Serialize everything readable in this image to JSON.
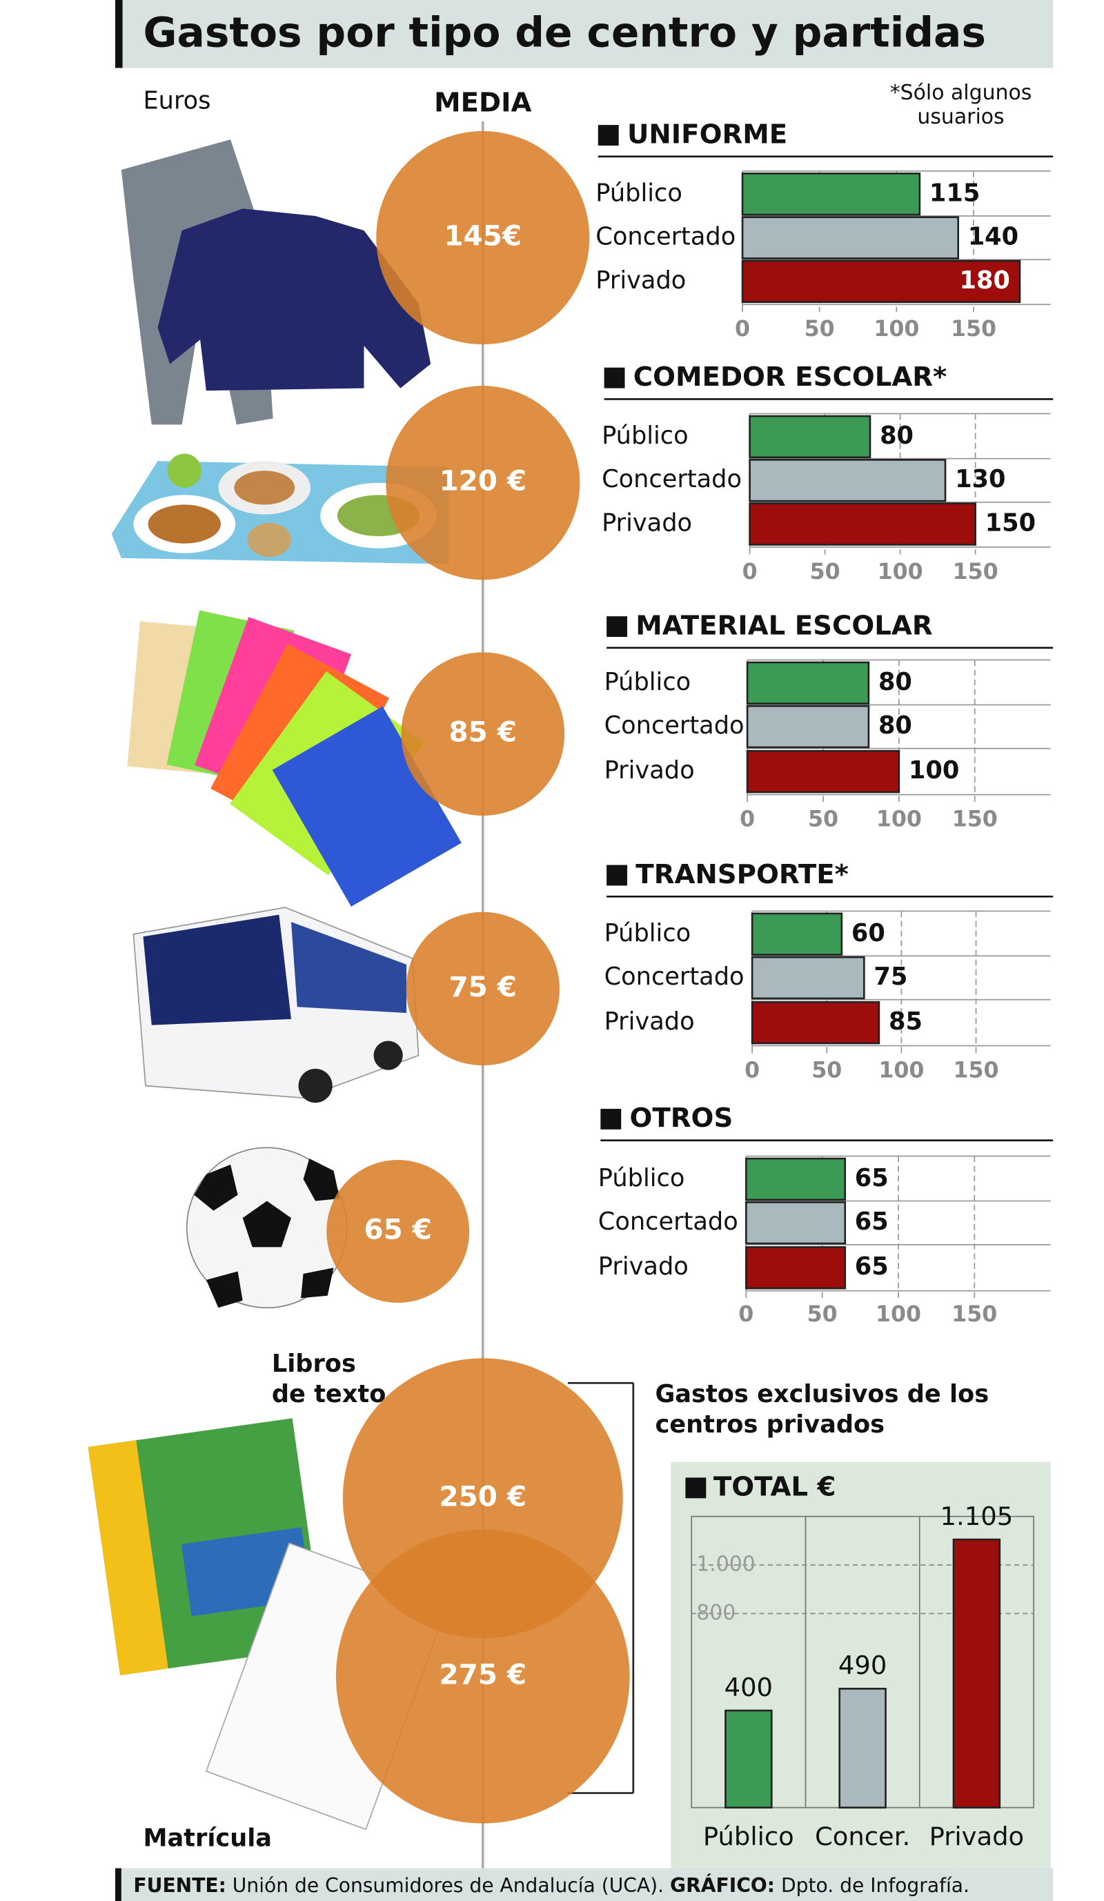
{
  "title": "Gastos por tipo de centro y partidas",
  "unit_label": "Euros",
  "note": [
    "*Sólo algunos",
    "usuarios"
  ],
  "media": {
    "title": "MEDIA",
    "values": [
      145,
      120,
      85,
      75,
      65,
      250,
      275
    ],
    "value_labels": [
      "145€",
      "120 €",
      "85 €",
      "75 €",
      "65 €",
      "250 €",
      "275 €"
    ]
  },
  "media_labels": {
    "books": [
      "Libros",
      "de texto"
    ],
    "enrollment": "Matrícula"
  },
  "exclusive_note": [
    "Gastos exclusivos de los",
    "centros privados"
  ],
  "chart_data": [
    {
      "type": "bar",
      "title": "UNIFORME",
      "categories": [
        "Público",
        "Concertado",
        "Privado"
      ],
      "values": [
        115,
        140,
        180
      ],
      "colors": [
        "#3b9b55",
        "#a9b9bd",
        "#9c0d0c"
      ],
      "xlim": [
        0,
        200
      ],
      "xticks": [
        0,
        50,
        100,
        150
      ],
      "grid": true
    },
    {
      "type": "bar",
      "title": "COMEDOR ESCOLAR*",
      "categories": [
        "Público",
        "Concertado",
        "Privado"
      ],
      "values": [
        80,
        130,
        150
      ],
      "colors": [
        "#3b9b55",
        "#a9b9bd",
        "#9c0d0c"
      ],
      "xlim": [
        0,
        200
      ],
      "xticks": [
        0,
        50,
        100,
        150
      ],
      "grid": true
    },
    {
      "type": "bar",
      "title": "MATERIAL ESCOLAR",
      "categories": [
        "Público",
        "Concertado",
        "Privado"
      ],
      "values": [
        80,
        80,
        100
      ],
      "colors": [
        "#3b9b55",
        "#a9b9bd",
        "#9c0d0c"
      ],
      "xlim": [
        0,
        200
      ],
      "xticks": [
        0,
        50,
        100,
        150
      ],
      "grid": true
    },
    {
      "type": "bar",
      "title": "TRANSPORTE*",
      "categories": [
        "Público",
        "Concertado",
        "Privado"
      ],
      "values": [
        60,
        75,
        85
      ],
      "colors": [
        "#3b9b55",
        "#a9b9bd",
        "#9c0d0c"
      ],
      "xlim": [
        0,
        200
      ],
      "xticks": [
        0,
        50,
        100,
        150
      ],
      "grid": true
    },
    {
      "type": "bar",
      "title": "OTROS",
      "categories": [
        "Público",
        "Concertado",
        "Privado"
      ],
      "values": [
        65,
        65,
        65
      ],
      "colors": [
        "#3b9b55",
        "#a9b9bd",
        "#9c0d0c"
      ],
      "xlim": [
        0,
        200
      ],
      "xticks": [
        0,
        50,
        100,
        150
      ],
      "grid": true
    },
    {
      "type": "column",
      "title": "TOTAL €",
      "categories": [
        "Público",
        "Concer.",
        "Privado"
      ],
      "values": [
        400,
        490,
        1105
      ],
      "value_labels": [
        "400",
        "490",
        "1.105"
      ],
      "colors": [
        "#3b9b55",
        "#a9b9bd",
        "#9c0d0c"
      ],
      "ylim": [
        0,
        1200
      ],
      "yticks": [
        800,
        {
          "value": 1000,
          "label": "1.000"
        }
      ],
      "grid": true
    }
  ],
  "footer": {
    "source_label": "FUENTE:",
    "source": "Unión de Consumidores de Andalucía (UCA).",
    "graphic_label": "GRÁFICO:",
    "graphic": "Dpto. de Infografía."
  }
}
